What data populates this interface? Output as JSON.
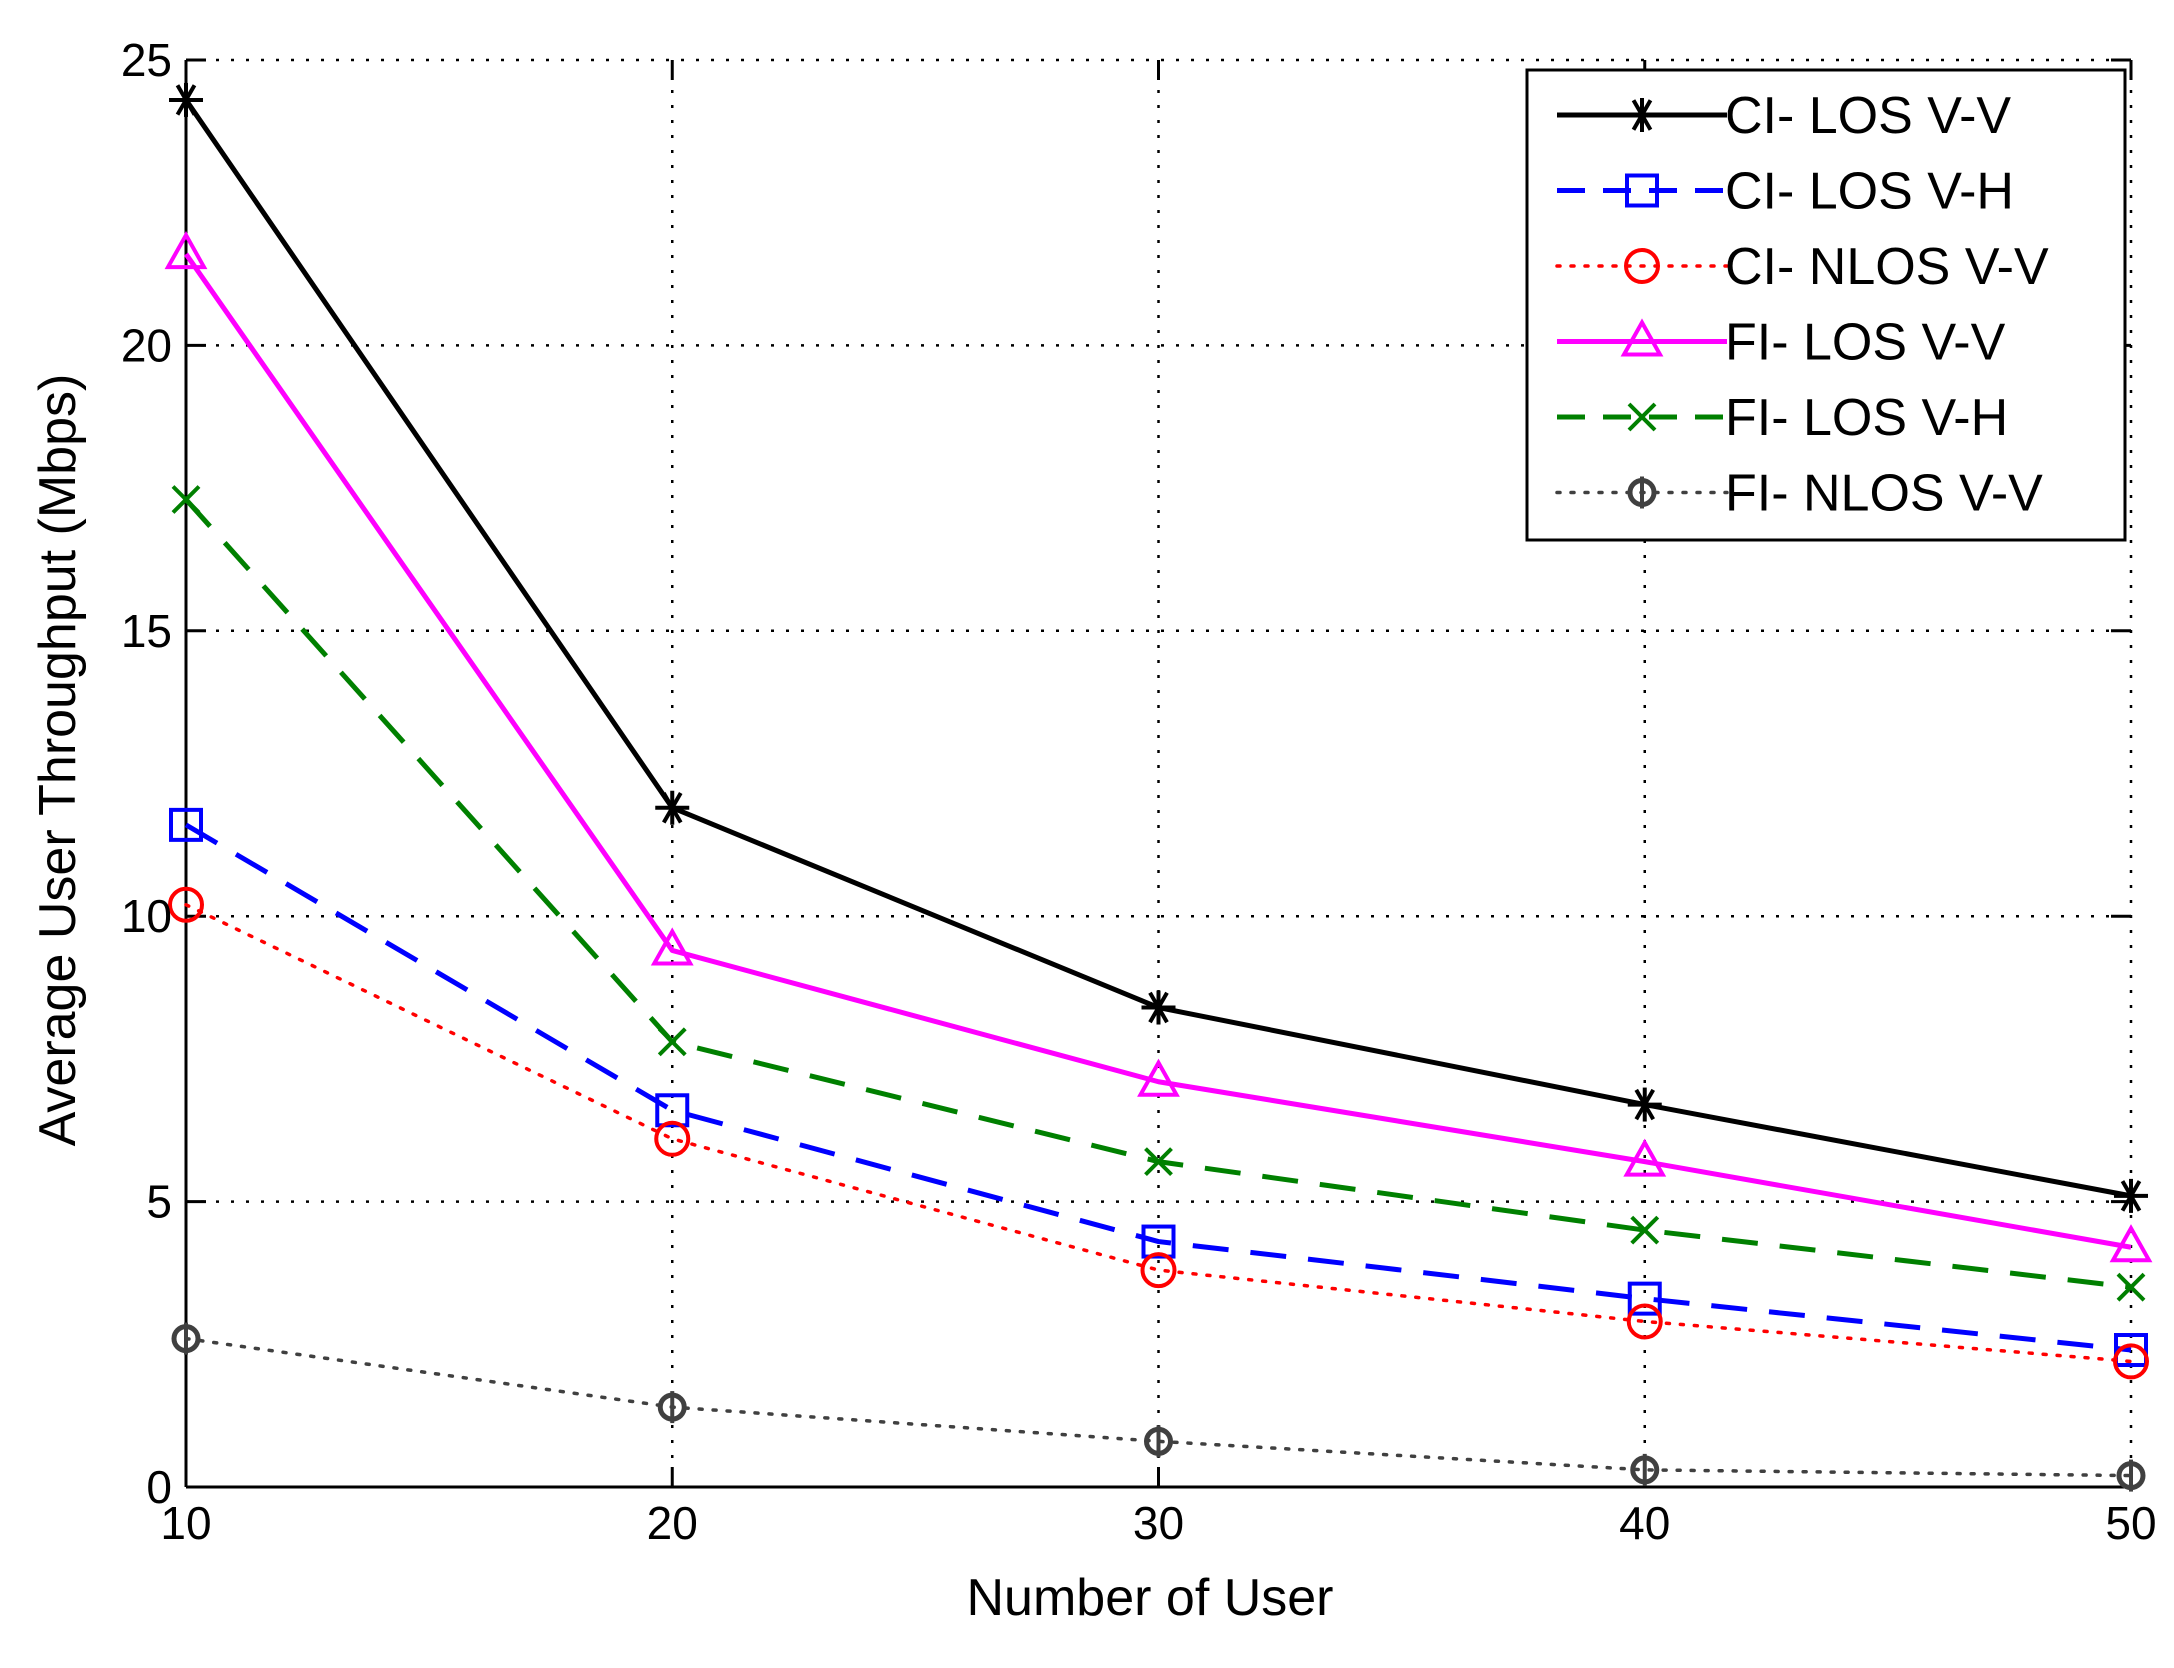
{
  "chart_data": {
    "type": "line",
    "title": "",
    "xlabel": "Number of User",
    "ylabel": "Average User Throughput (Mbps)",
    "x": [
      10,
      20,
      30,
      40,
      50
    ],
    "xlim": [
      10,
      50
    ],
    "ylim": [
      0,
      25
    ],
    "xticks": [
      10,
      20,
      30,
      40,
      50
    ],
    "yticks": [
      0,
      5,
      10,
      15,
      20,
      25
    ],
    "grid": true,
    "legend_position": "top-right",
    "series": [
      {
        "name": "CI- LOS V-V",
        "values": [
          24.3,
          11.9,
          8.4,
          6.7,
          5.1
        ],
        "color": "#000000",
        "line_style": "solid",
        "marker": "asterisk"
      },
      {
        "name": "CI- LOS V-H",
        "values": [
          11.6,
          6.6,
          4.3,
          3.3,
          2.4
        ],
        "color": "#0000ff",
        "line_style": "dashed",
        "marker": "square"
      },
      {
        "name": "CI- NLOS V-V",
        "values": [
          10.2,
          6.1,
          3.8,
          2.9,
          2.2
        ],
        "color": "#ff0000",
        "line_style": "dotted",
        "marker": "circle"
      },
      {
        "name": "FI- LOS V-V",
        "values": [
          21.6,
          9.4,
          7.1,
          5.7,
          4.2
        ],
        "color": "#ff00ff",
        "line_style": "solid",
        "marker": "triangle"
      },
      {
        "name": "FI- LOS V-H",
        "values": [
          17.3,
          7.8,
          5.7,
          4.5,
          3.5
        ],
        "color": "#008000",
        "line_style": "dashed",
        "marker": "x"
      },
      {
        "name": "FI- NLOS V-V",
        "values": [
          2.6,
          1.4,
          0.8,
          0.3,
          0.2
        ],
        "color": "#404040",
        "line_style": "dotted",
        "marker": "diamond"
      }
    ]
  }
}
